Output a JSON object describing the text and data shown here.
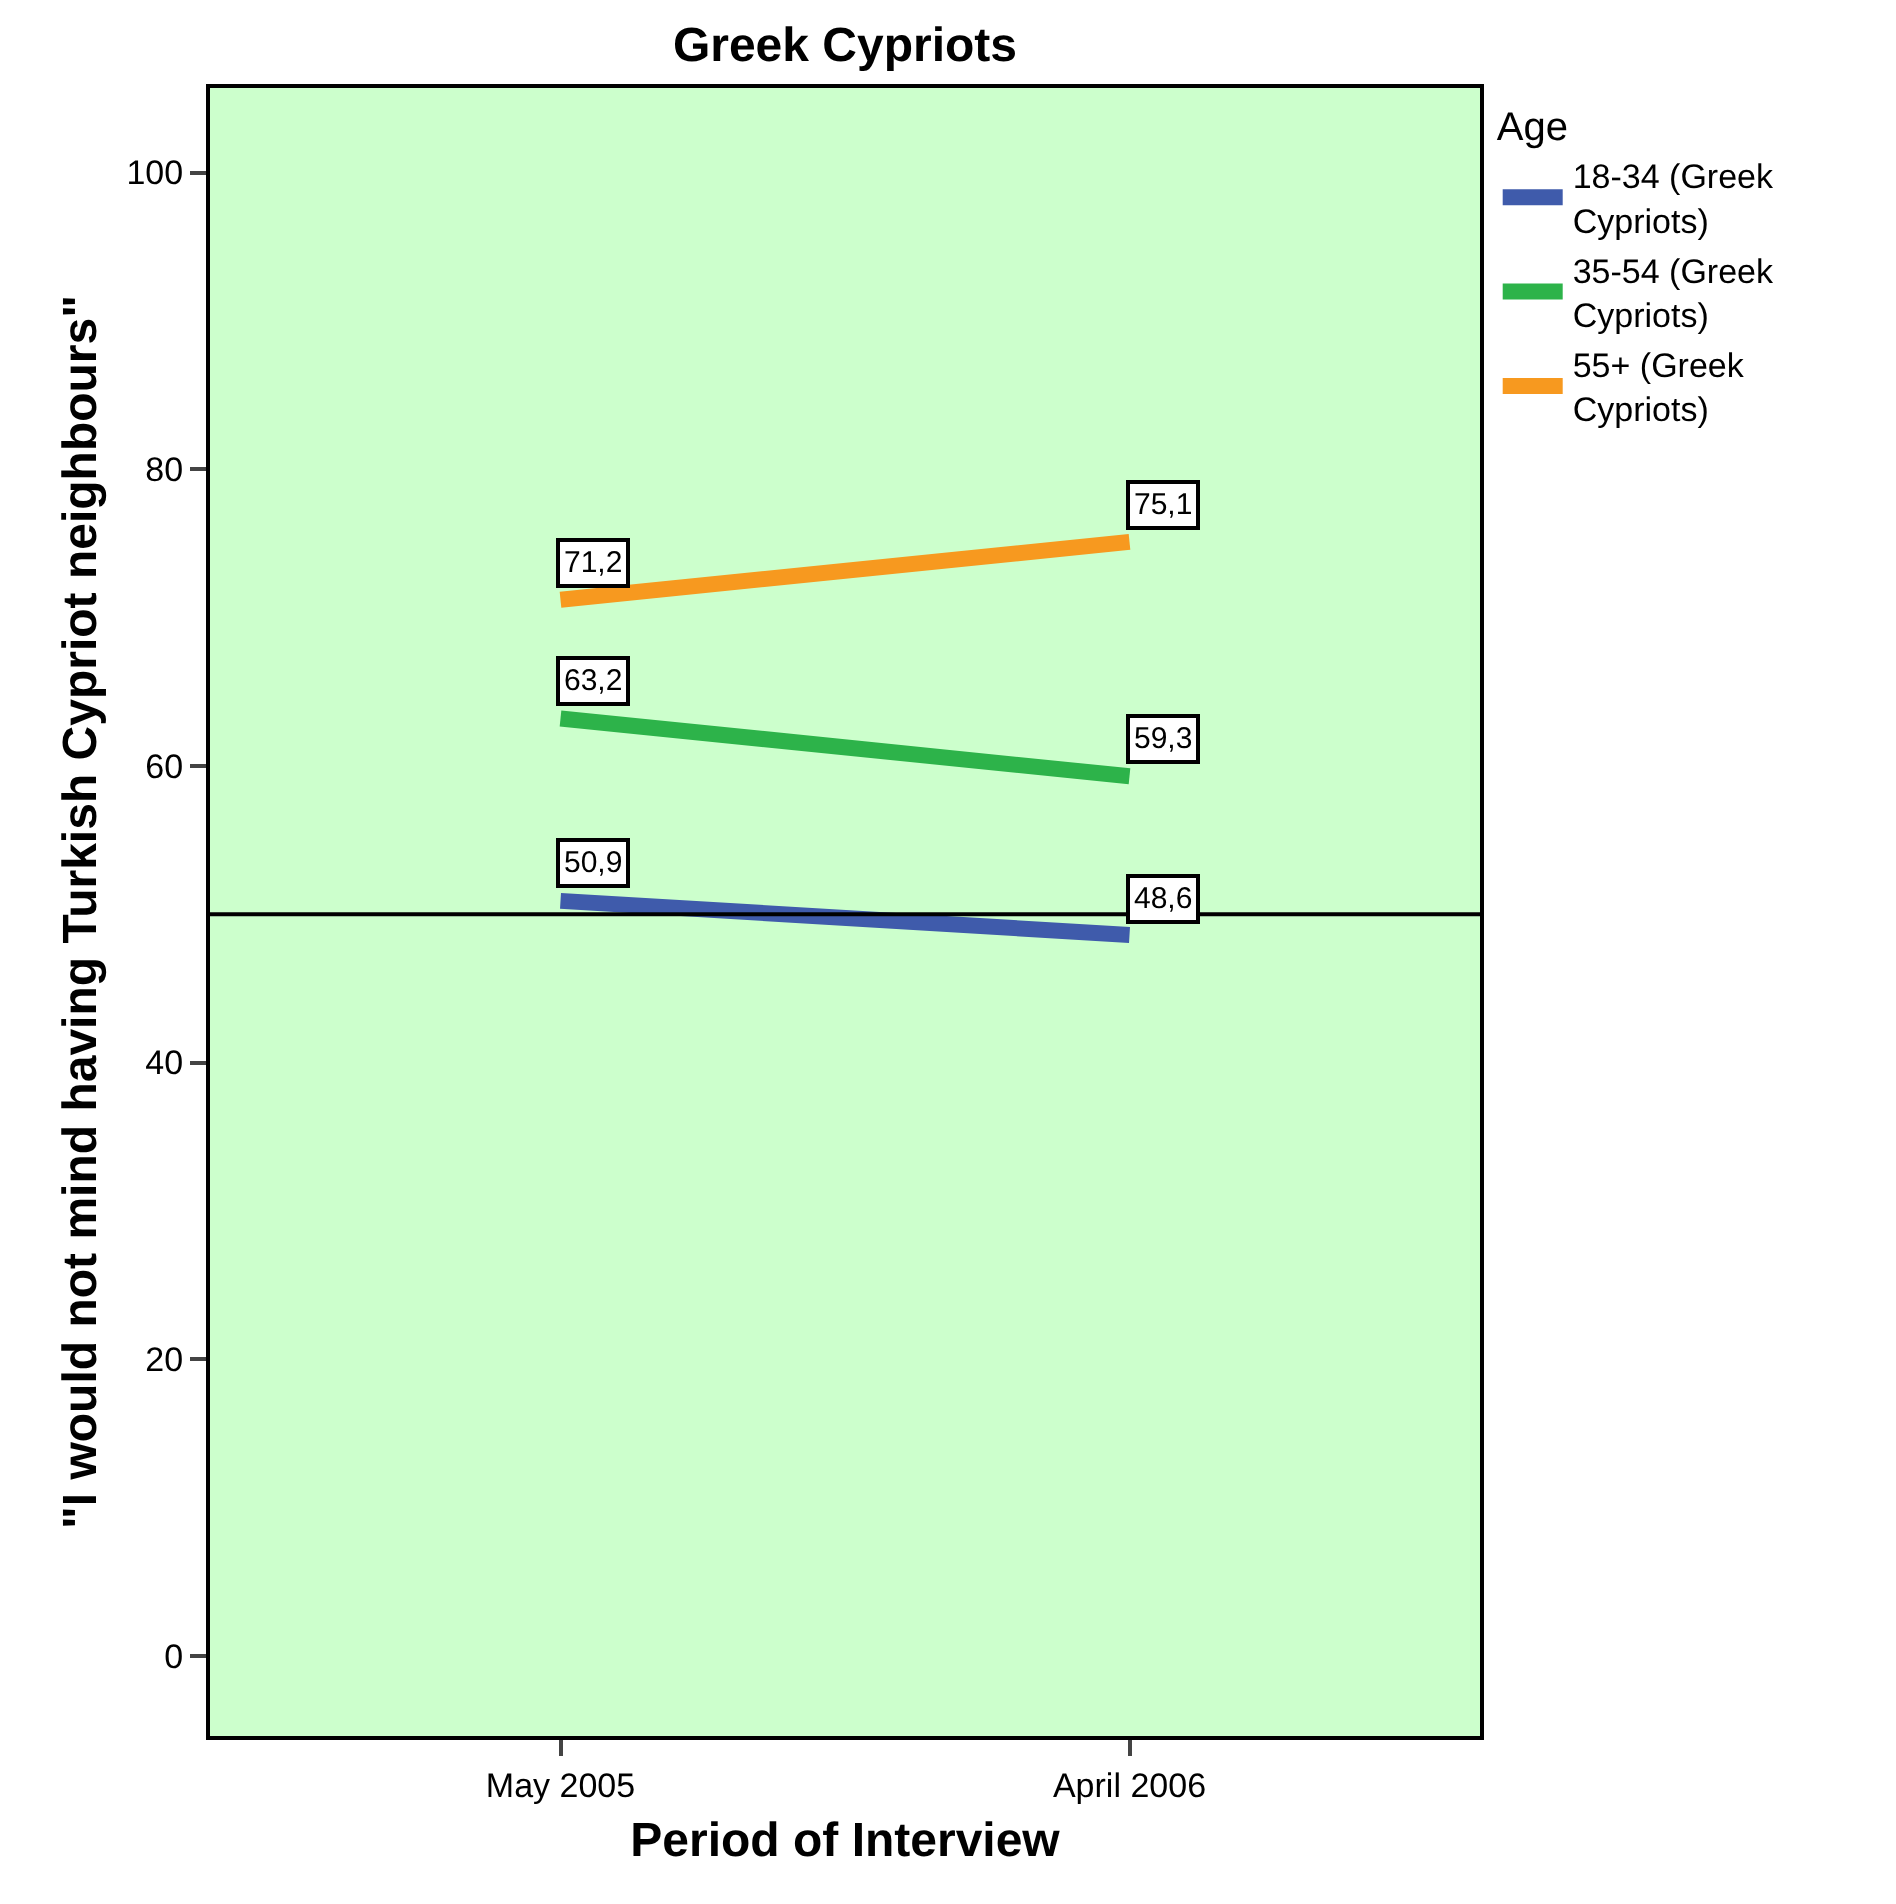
{
  "chart_data": {
    "type": "line",
    "title": "Greek Cypriots",
    "xlabel": "Period of Interview",
    "ylabel": "\"I would not mind having Turkish Cypriot neighbours\"",
    "legend_title": "Age",
    "categories": [
      "May 2005",
      "April 2006"
    ],
    "series": [
      {
        "name": "18-34 (Greek Cypriots)",
        "color": "#3f5bab",
        "values": [
          50.9,
          48.6
        ],
        "value_labels": [
          "50,9",
          "48,6"
        ]
      },
      {
        "name": "35-54 (Greek Cypriots)",
        "color": "#2db34a",
        "values": [
          63.2,
          59.3
        ],
        "value_labels": [
          "63,2",
          "59,3"
        ]
      },
      {
        "name": "55+ (Greek Cypriots)",
        "color": "#f7991f",
        "values": [
          71.2,
          75.1
        ],
        "value_labels": [
          "71,2",
          "75,1"
        ]
      }
    ],
    "ylim": [
      -5.4,
      105.7
    ],
    "yticks": [
      0,
      20,
      40,
      60,
      80,
      100
    ],
    "ref_lines": [
      {
        "axis": "y",
        "value": 50,
        "color": "#000000"
      }
    ],
    "grid": false,
    "legend": "right",
    "marker": "none",
    "line_style": "solid"
  }
}
